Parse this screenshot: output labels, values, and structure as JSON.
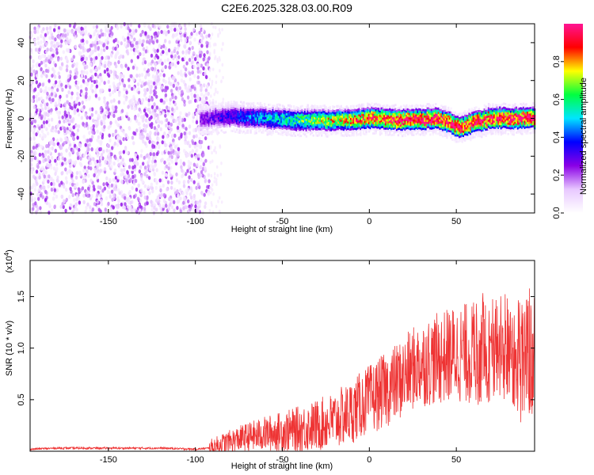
{
  "title": "C2E6.2025.328.03.00.R09",
  "chart_data": [
    {
      "type": "heatmap",
      "xlabel": "Height of straight line (km)",
      "ylabel": "Frequency (Hz)",
      "xlim": [
        -195,
        95
      ],
      "ylim": [
        -50,
        50
      ],
      "xticks": [
        -150,
        -100,
        -50,
        0,
        50
      ],
      "yticks": [
        -40,
        -20,
        0,
        20,
        40
      ],
      "colorbar": {
        "label": "Normalized spectral amplitude",
        "range": [
          0,
          1
        ],
        "ticks": [
          "0.0",
          "0.2",
          "0.4",
          "0.6",
          "0.8"
        ],
        "colormap": [
          "#FFFFFF",
          "#E8C8FF",
          "#8A00E6",
          "#0000FF",
          "#00E5FF",
          "#00FF40",
          "#FFFF00",
          "#FF0000",
          "#FF1493"
        ]
      },
      "noise_region_x": [
        -195,
        -92
      ],
      "signal_band": {
        "x_start": -97,
        "x_end": 95,
        "center_frequency_hz": [
          [
            -97,
            0.0
          ],
          [
            -80,
            1.0
          ],
          [
            -60,
            0.0
          ],
          [
            -40,
            -1.0
          ],
          [
            -20,
            -1.0
          ],
          [
            0,
            0.0
          ],
          [
            20,
            -1.0
          ],
          [
            40,
            0.0
          ],
          [
            48,
            -3.0
          ],
          [
            52,
            -5.0
          ],
          [
            58,
            -3.0
          ],
          [
            70,
            0.0
          ],
          [
            95,
            0.0
          ]
        ],
        "half_width_hz": 6
      }
    },
    {
      "type": "line",
      "xlabel": "Height of straight line (km)",
      "ylabel": "SNR (10 * v/v)",
      "yscale_label": "(x10",
      "yscale_exp": "4",
      "yscale_tail": ")",
      "xlim": [
        -195,
        95
      ],
      "ylim": [
        0,
        1.85
      ],
      "xticks": [
        -150,
        -100,
        -50,
        0,
        50
      ],
      "yticks": [
        "0.5",
        "1.0",
        "1.5"
      ],
      "color": "#EE3333",
      "series": [
        {
          "x": [
            -195,
            -180,
            -160,
            -140,
            -120,
            -100,
            -92,
            -85,
            -75,
            -60,
            -45,
            -30,
            -20,
            -10,
            -5,
            0,
            10,
            20,
            25,
            30,
            40,
            50,
            60,
            70,
            75,
            80,
            85,
            90,
            95
          ],
          "y": [
            0.02,
            0.03,
            0.03,
            0.03,
            0.03,
            0.02,
            0.03,
            0.07,
            0.12,
            0.17,
            0.2,
            0.25,
            0.3,
            0.38,
            0.45,
            0.5,
            0.6,
            0.72,
            0.8,
            0.85,
            0.9,
            0.95,
            0.95,
            0.98,
            1.0,
            1.0,
            0.95,
            0.92,
            0.9
          ]
        }
      ]
    }
  ]
}
